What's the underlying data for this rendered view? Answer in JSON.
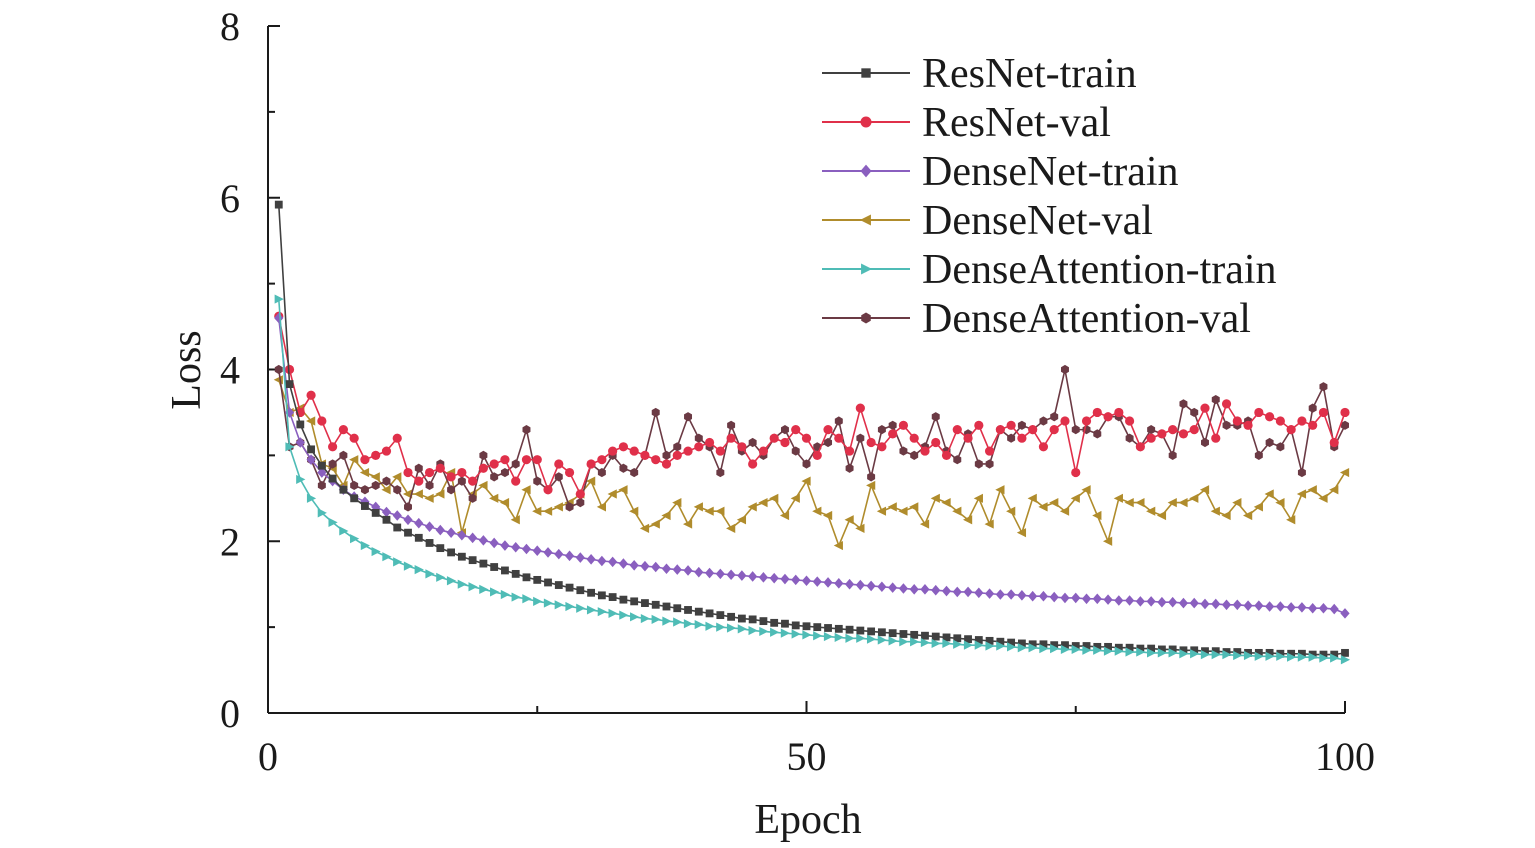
{
  "chart_data": {
    "type": "line",
    "xlabel": "Epoch",
    "ylabel": "Loss",
    "xlim": [
      0,
      100
    ],
    "ylim": [
      0,
      8
    ],
    "x_ticks": [
      0,
      50,
      100
    ],
    "x_minor_ticks": [
      25,
      75
    ],
    "y_ticks": [
      0,
      2,
      4,
      6,
      8
    ],
    "y_minor_ticks": [
      1,
      3,
      5,
      7
    ],
    "grid": false,
    "legend_position": "top-right",
    "x": [
      1,
      2,
      3,
      4,
      5,
      6,
      7,
      8,
      9,
      10,
      11,
      12,
      13,
      14,
      15,
      16,
      17,
      18,
      19,
      20,
      21,
      22,
      23,
      24,
      25,
      26,
      27,
      28,
      29,
      30,
      31,
      32,
      33,
      34,
      35,
      36,
      37,
      38,
      39,
      40,
      41,
      42,
      43,
      44,
      45,
      46,
      47,
      48,
      49,
      50,
      51,
      52,
      53,
      54,
      55,
      56,
      57,
      58,
      59,
      60,
      61,
      62,
      63,
      64,
      65,
      66,
      67,
      68,
      69,
      70,
      71,
      72,
      73,
      74,
      75,
      76,
      77,
      78,
      79,
      80,
      81,
      82,
      83,
      84,
      85,
      86,
      87,
      88,
      89,
      90,
      91,
      92,
      93,
      94,
      95,
      96,
      97,
      98,
      99,
      100
    ],
    "series": [
      {
        "name": "ResNet-train",
        "color": "#404040",
        "marker": "square",
        "values": [
          5.92,
          3.83,
          3.36,
          3.07,
          2.88,
          2.73,
          2.6,
          2.5,
          2.41,
          2.33,
          2.25,
          2.16,
          2.1,
          2.04,
          1.98,
          1.92,
          1.87,
          1.82,
          1.78,
          1.74,
          1.7,
          1.66,
          1.62,
          1.58,
          1.55,
          1.52,
          1.49,
          1.46,
          1.43,
          1.4,
          1.37,
          1.35,
          1.32,
          1.3,
          1.28,
          1.26,
          1.24,
          1.22,
          1.2,
          1.18,
          1.16,
          1.14,
          1.12,
          1.1,
          1.09,
          1.07,
          1.05,
          1.04,
          1.02,
          1.01,
          1.0,
          0.99,
          0.98,
          0.97,
          0.96,
          0.95,
          0.94,
          0.93,
          0.92,
          0.91,
          0.9,
          0.89,
          0.88,
          0.87,
          0.86,
          0.85,
          0.84,
          0.83,
          0.82,
          0.81,
          0.8,
          0.8,
          0.79,
          0.79,
          0.78,
          0.78,
          0.77,
          0.77,
          0.76,
          0.76,
          0.75,
          0.75,
          0.74,
          0.74,
          0.73,
          0.73,
          0.72,
          0.72,
          0.71,
          0.71,
          0.7,
          0.7,
          0.7,
          0.69,
          0.69,
          0.69,
          0.68,
          0.68,
          0.68,
          0.7
        ]
      },
      {
        "name": "ResNet-val",
        "color": "#e0304a",
        "marker": "circle",
        "values": [
          4.62,
          4.0,
          3.5,
          3.7,
          3.4,
          3.1,
          3.3,
          3.2,
          2.95,
          3.0,
          3.05,
          3.2,
          2.8,
          2.7,
          2.8,
          2.85,
          2.75,
          2.8,
          2.7,
          2.85,
          2.9,
          2.95,
          2.7,
          2.95,
          2.95,
          2.6,
          2.9,
          2.8,
          2.55,
          2.9,
          2.95,
          3.05,
          3.1,
          3.05,
          3.0,
          2.95,
          2.9,
          3.0,
          3.05,
          3.1,
          3.15,
          3.05,
          3.2,
          3.1,
          2.9,
          3.05,
          3.2,
          3.15,
          3.3,
          3.2,
          3.0,
          3.3,
          3.2,
          3.05,
          3.55,
          3.15,
          3.1,
          3.25,
          3.35,
          3.2,
          3.05,
          3.15,
          3.0,
          3.3,
          3.2,
          3.35,
          3.05,
          3.3,
          3.35,
          3.2,
          3.3,
          3.1,
          3.3,
          3.4,
          2.8,
          3.4,
          3.5,
          3.45,
          3.5,
          3.4,
          3.1,
          3.2,
          3.25,
          3.3,
          3.25,
          3.3,
          3.55,
          3.2,
          3.6,
          3.4,
          3.35,
          3.5,
          3.45,
          3.4,
          3.3,
          3.4,
          3.35,
          3.5,
          3.15,
          3.5
        ]
      },
      {
        "name": "DenseNet-train",
        "color": "#8a5fbf",
        "marker": "diamond",
        "values": [
          4.6,
          3.5,
          3.15,
          2.95,
          2.8,
          2.7,
          2.6,
          2.52,
          2.46,
          2.4,
          2.34,
          2.3,
          2.25,
          2.21,
          2.17,
          2.13,
          2.1,
          2.07,
          2.04,
          2.01,
          1.98,
          1.95,
          1.93,
          1.91,
          1.89,
          1.87,
          1.85,
          1.83,
          1.81,
          1.79,
          1.77,
          1.76,
          1.74,
          1.72,
          1.71,
          1.7,
          1.68,
          1.67,
          1.66,
          1.64,
          1.63,
          1.62,
          1.61,
          1.6,
          1.59,
          1.58,
          1.57,
          1.56,
          1.55,
          1.54,
          1.53,
          1.52,
          1.51,
          1.5,
          1.49,
          1.48,
          1.47,
          1.46,
          1.45,
          1.44,
          1.44,
          1.43,
          1.42,
          1.41,
          1.41,
          1.4,
          1.39,
          1.38,
          1.38,
          1.37,
          1.36,
          1.36,
          1.35,
          1.34,
          1.34,
          1.33,
          1.33,
          1.32,
          1.31,
          1.31,
          1.3,
          1.3,
          1.29,
          1.29,
          1.28,
          1.28,
          1.27,
          1.27,
          1.26,
          1.26,
          1.25,
          1.25,
          1.24,
          1.24,
          1.23,
          1.23,
          1.22,
          1.22,
          1.21,
          1.16
        ]
      },
      {
        "name": "DenseNet-val",
        "color": "#b08c2c",
        "marker": "triangle-left",
        "values": [
          3.88,
          3.5,
          3.55,
          3.4,
          2.9,
          2.85,
          2.65,
          2.95,
          2.8,
          2.75,
          2.6,
          2.75,
          2.55,
          2.55,
          2.5,
          2.55,
          2.8,
          2.1,
          2.55,
          2.65,
          2.5,
          2.45,
          2.25,
          2.6,
          2.35,
          2.35,
          2.4,
          2.45,
          2.55,
          2.7,
          2.4,
          2.55,
          2.6,
          2.35,
          2.15,
          2.2,
          2.3,
          2.45,
          2.2,
          2.4,
          2.35,
          2.35,
          2.15,
          2.25,
          2.4,
          2.45,
          2.5,
          2.3,
          2.5,
          2.7,
          2.35,
          2.3,
          1.95,
          2.25,
          2.15,
          2.65,
          2.35,
          2.4,
          2.35,
          2.4,
          2.2,
          2.5,
          2.45,
          2.35,
          2.25,
          2.5,
          2.2,
          2.6,
          2.35,
          2.1,
          2.5,
          2.4,
          2.45,
          2.35,
          2.5,
          2.6,
          2.3,
          2.0,
          2.5,
          2.45,
          2.45,
          2.35,
          2.3,
          2.45,
          2.45,
          2.5,
          2.6,
          2.35,
          2.3,
          2.45,
          2.3,
          2.4,
          2.55,
          2.45,
          2.25,
          2.55,
          2.6,
          2.5,
          2.6,
          2.8
        ]
      },
      {
        "name": "DenseAttention-train",
        "color": "#4fbcb6",
        "marker": "triangle-right",
        "values": [
          4.82,
          3.1,
          2.72,
          2.5,
          2.33,
          2.22,
          2.12,
          2.03,
          1.95,
          1.88,
          1.82,
          1.76,
          1.71,
          1.67,
          1.62,
          1.58,
          1.54,
          1.5,
          1.47,
          1.44,
          1.41,
          1.38,
          1.35,
          1.33,
          1.3,
          1.28,
          1.26,
          1.24,
          1.22,
          1.2,
          1.18,
          1.16,
          1.14,
          1.12,
          1.1,
          1.09,
          1.07,
          1.06,
          1.04,
          1.03,
          1.01,
          1.0,
          0.99,
          0.98,
          0.96,
          0.95,
          0.94,
          0.93,
          0.92,
          0.91,
          0.9,
          0.89,
          0.88,
          0.87,
          0.87,
          0.86,
          0.85,
          0.84,
          0.83,
          0.83,
          0.82,
          0.81,
          0.81,
          0.8,
          0.79,
          0.79,
          0.78,
          0.78,
          0.77,
          0.76,
          0.76,
          0.75,
          0.75,
          0.74,
          0.74,
          0.73,
          0.73,
          0.72,
          0.72,
          0.71,
          0.71,
          0.7,
          0.7,
          0.7,
          0.69,
          0.69,
          0.68,
          0.68,
          0.68,
          0.67,
          0.67,
          0.66,
          0.66,
          0.66,
          0.65,
          0.65,
          0.65,
          0.64,
          0.64,
          0.62
        ]
      },
      {
        "name": "DenseAttention-val",
        "color": "#6b3a44",
        "marker": "hexagon",
        "values": [
          4.0,
          3.1,
          3.15,
          2.95,
          2.65,
          2.9,
          3.0,
          2.65,
          2.6,
          2.65,
          2.7,
          2.6,
          2.4,
          2.85,
          2.65,
          2.9,
          2.6,
          2.7,
          2.5,
          3.0,
          2.75,
          2.8,
          2.9,
          3.3,
          2.7,
          2.6,
          2.75,
          2.4,
          2.45,
          2.9,
          2.8,
          3.0,
          2.85,
          2.8,
          3.0,
          3.5,
          3.0,
          3.1,
          3.45,
          3.2,
          3.1,
          2.8,
          3.35,
          3.05,
          3.15,
          3.0,
          3.2,
          3.3,
          3.05,
          2.9,
          3.1,
          3.15,
          3.4,
          2.85,
          3.2,
          2.75,
          3.3,
          3.35,
          3.05,
          3.0,
          3.1,
          3.45,
          3.05,
          2.95,
          3.25,
          2.9,
          2.9,
          3.3,
          3.2,
          3.35,
          3.3,
          3.4,
          3.45,
          4.0,
          3.3,
          3.3,
          3.25,
          3.45,
          3.45,
          3.2,
          3.1,
          3.3,
          3.25,
          3.0,
          3.6,
          3.5,
          3.15,
          3.65,
          3.35,
          3.35,
          3.4,
          3.0,
          3.15,
          3.1,
          3.3,
          2.8,
          3.55,
          3.8,
          3.1,
          3.35
        ]
      }
    ]
  }
}
